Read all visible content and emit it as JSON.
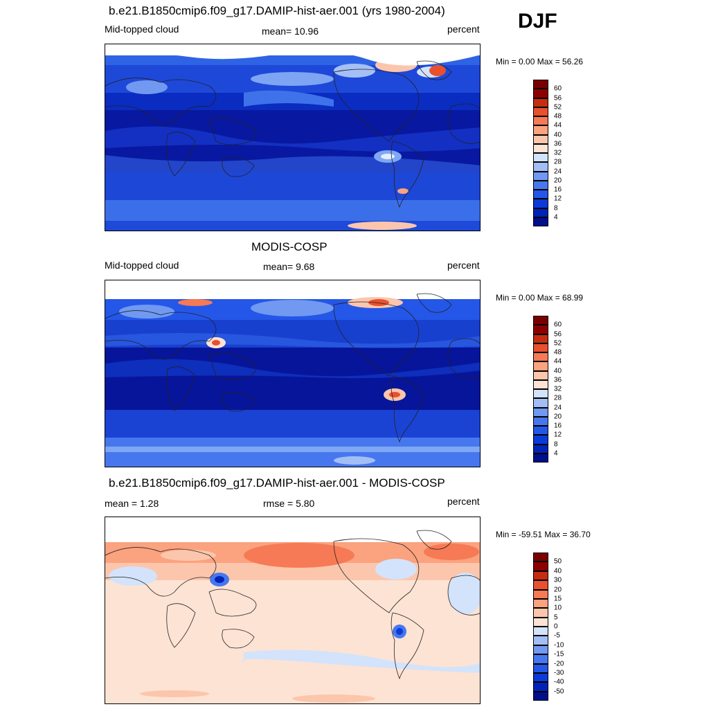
{
  "season": "DJF",
  "panels": [
    {
      "id": "model",
      "title": "b.e21.B1850cmip6.f09_g17.DAMIP-hist-aer.001 (yrs 1980-2004)",
      "left_label": "Mid-topped cloud",
      "center_label": "mean=  10.96",
      "right_label": "percent",
      "minmax": "Min =   0.00 Max =  56.26"
    },
    {
      "id": "obs",
      "title": "MODIS-COSP",
      "left_label": "Mid-topped cloud",
      "center_label": "mean=   9.68",
      "right_label": "percent",
      "minmax": "Min =   0.00 Max =  68.99"
    },
    {
      "id": "diff",
      "title": "b.e21.B1850cmip6.f09_g17.DAMIP-hist-aer.001 - MODIS-COSP",
      "left_label": "mean =   1.28",
      "center_label": "rmse =   5.80",
      "right_label": "percent",
      "minmax": "Min = -59.51 Max =  36.70"
    }
  ],
  "chart_data": [
    {
      "type": "heatmap",
      "title": "b.e21.B1850cmip6.f09_g17.DAMIP-hist-aer.001 (yrs 1980-2004)",
      "variable": "Mid-topped cloud",
      "units": "percent",
      "mean": 10.96,
      "min": 0.0,
      "max": 56.26,
      "colorbar_levels": [
        4,
        8,
        12,
        16,
        20,
        24,
        28,
        32,
        36,
        40,
        44,
        48,
        52,
        56,
        60
      ],
      "colorbar_colors": [
        "#000f8a",
        "#0024b8",
        "#0a3bd9",
        "#2457e8",
        "#4777ee",
        "#7199f2",
        "#a3bef6",
        "#d3e3fb",
        "#fde3d4",
        "#fcc6ac",
        "#fba27f",
        "#f67a55",
        "#e8502e",
        "#c62d10",
        "#8d0000",
        "#7a0000"
      ]
    },
    {
      "type": "heatmap",
      "title": "MODIS-COSP",
      "variable": "Mid-topped cloud",
      "units": "percent",
      "mean": 9.68,
      "min": 0.0,
      "max": 68.99,
      "colorbar_levels": [
        4,
        8,
        12,
        16,
        20,
        24,
        28,
        32,
        36,
        40,
        44,
        48,
        52,
        56,
        60
      ],
      "colorbar_colors": [
        "#000f8a",
        "#0024b8",
        "#0a3bd9",
        "#2457e8",
        "#4777ee",
        "#7199f2",
        "#a3bef6",
        "#d3e3fb",
        "#fde3d4",
        "#fcc6ac",
        "#fba27f",
        "#f67a55",
        "#e8502e",
        "#c62d10",
        "#8d0000",
        "#7a0000"
      ]
    },
    {
      "type": "heatmap",
      "title": "b.e21.B1850cmip6.f09_g17.DAMIP-hist-aer.001 - MODIS-COSP",
      "units": "percent",
      "mean": 1.28,
      "rmse": 5.8,
      "min": -59.51,
      "max": 36.7,
      "colorbar_levels": [
        -50,
        -40,
        -30,
        -20,
        -15,
        -10,
        -5,
        0,
        5,
        10,
        15,
        20,
        30,
        40,
        50
      ],
      "colorbar_colors": [
        "#000f8a",
        "#0024b8",
        "#0a3bd9",
        "#2457e8",
        "#4777ee",
        "#7199f2",
        "#a3bef6",
        "#d3e3fb",
        "#fde3d4",
        "#fcc6ac",
        "#fba27f",
        "#f67a55",
        "#e8502e",
        "#c62d10",
        "#8d0000",
        "#7a0000"
      ]
    }
  ]
}
